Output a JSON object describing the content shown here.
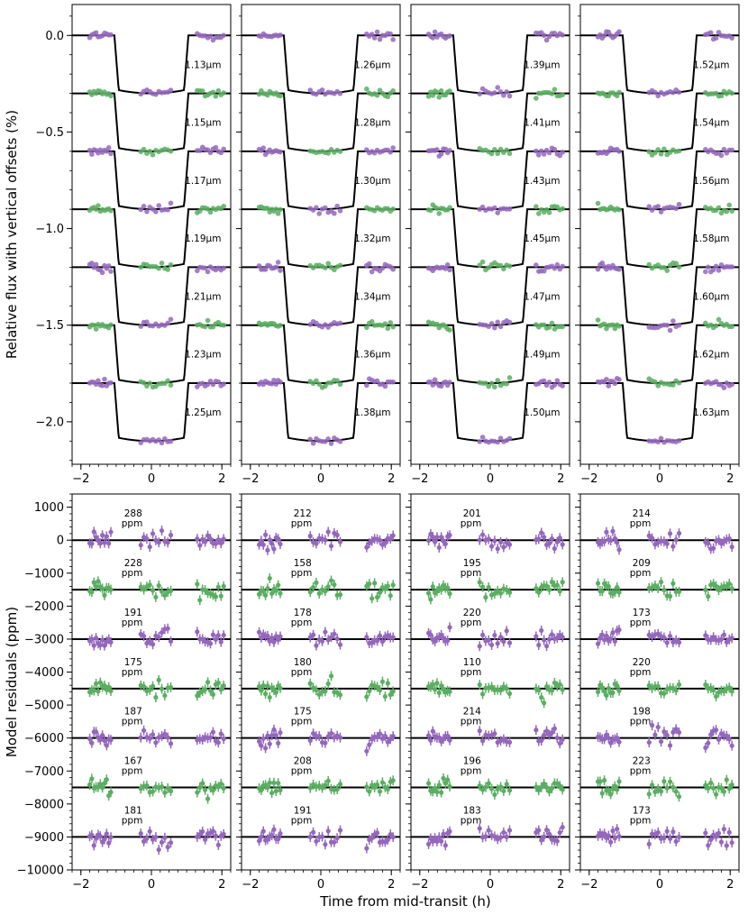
{
  "colors": {
    "purple": "#9467bd",
    "green": "#5aae61",
    "model": "#000000"
  },
  "chart_data": [
    {
      "type": "scatter",
      "panel": "light-curves",
      "ylabel": "Relative flux with vertical offsets (%)",
      "xlabel": "",
      "xlim": [
        -2.25,
        2.25
      ],
      "ylim": [
        -2.22,
        0.16
      ],
      "xticks": [
        "−2",
        "0",
        "2"
      ],
      "yticks": [
        {
          "v": 0.0,
          "label": "0.0"
        },
        {
          "v": -0.5,
          "label": "−0.5"
        },
        {
          "v": -1.0,
          "label": "−1.0"
        },
        {
          "v": -1.5,
          "label": "−1.5"
        },
        {
          "v": -2.0,
          "label": "−2.0"
        }
      ],
      "offsets": [
        0.0,
        -0.3,
        -0.6,
        -0.9,
        -1.2,
        -1.5,
        -1.8
      ],
      "transit_depth": 0.3,
      "transit_window": [
        -1.05,
        1.05
      ],
      "series_colors": [
        "purple",
        "green",
        "purple",
        "green",
        "purple",
        "green",
        "purple"
      ],
      "columns": [
        {
          "labels": [
            "1.13μm",
            "1.15μm",
            "1.17μm",
            "1.19μm",
            "1.21μm",
            "1.23μm",
            "1.25μm"
          ]
        },
        {
          "labels": [
            "1.26μm",
            "1.28μm",
            "1.30μm",
            "1.32μm",
            "1.34μm",
            "1.36μm",
            "1.38μm"
          ]
        },
        {
          "labels": [
            "1.39μm",
            "1.41μm",
            "1.43μm",
            "1.45μm",
            "1.47μm",
            "1.49μm",
            "1.50μm"
          ]
        },
        {
          "labels": [
            "1.52μm",
            "1.54μm",
            "1.56μm",
            "1.58μm",
            "1.60μm",
            "1.62μm",
            "1.63μm"
          ]
        }
      ]
    },
    {
      "type": "scatter",
      "panel": "residuals",
      "ylabel": "Model residuals (ppm)",
      "xlabel": "Time from mid-transit (h)",
      "xlim": [
        -2.25,
        2.25
      ],
      "ylim": [
        -10000,
        1400
      ],
      "xticks": [
        "−2",
        "0",
        "2"
      ],
      "yticks": [
        {
          "v": 1000,
          "label": "1000"
        },
        {
          "v": 0,
          "label": "0"
        },
        {
          "v": -1000,
          "label": "−1000"
        },
        {
          "v": -2000,
          "label": "−2000"
        },
        {
          "v": -3000,
          "label": "−3000"
        },
        {
          "v": -4000,
          "label": "−4000"
        },
        {
          "v": -5000,
          "label": "−5000"
        },
        {
          "v": -6000,
          "label": "−6000"
        },
        {
          "v": -7000,
          "label": "−7000"
        },
        {
          "v": -8000,
          "label": "−8000"
        },
        {
          "v": -9000,
          "label": "−9000"
        },
        {
          "v": -10000,
          "label": "−10000"
        }
      ],
      "offsets": [
        0,
        -1500,
        -3000,
        -4500,
        -6000,
        -7500,
        -9000
      ],
      "series_colors": [
        "purple",
        "green",
        "purple",
        "green",
        "purple",
        "green",
        "purple"
      ],
      "unit": "ppm",
      "columns": [
        {
          "rms": [
            "288",
            "228",
            "191",
            "175",
            "187",
            "167",
            "181"
          ]
        },
        {
          "rms": [
            "212",
            "158",
            "178",
            "180",
            "175",
            "208",
            "191"
          ]
        },
        {
          "rms": [
            "201",
            "195",
            "220",
            "110",
            "214",
            "196",
            "183"
          ]
        },
        {
          "rms": [
            "214",
            "209",
            "173",
            "220",
            "198",
            "223",
            "173"
          ]
        }
      ]
    }
  ]
}
